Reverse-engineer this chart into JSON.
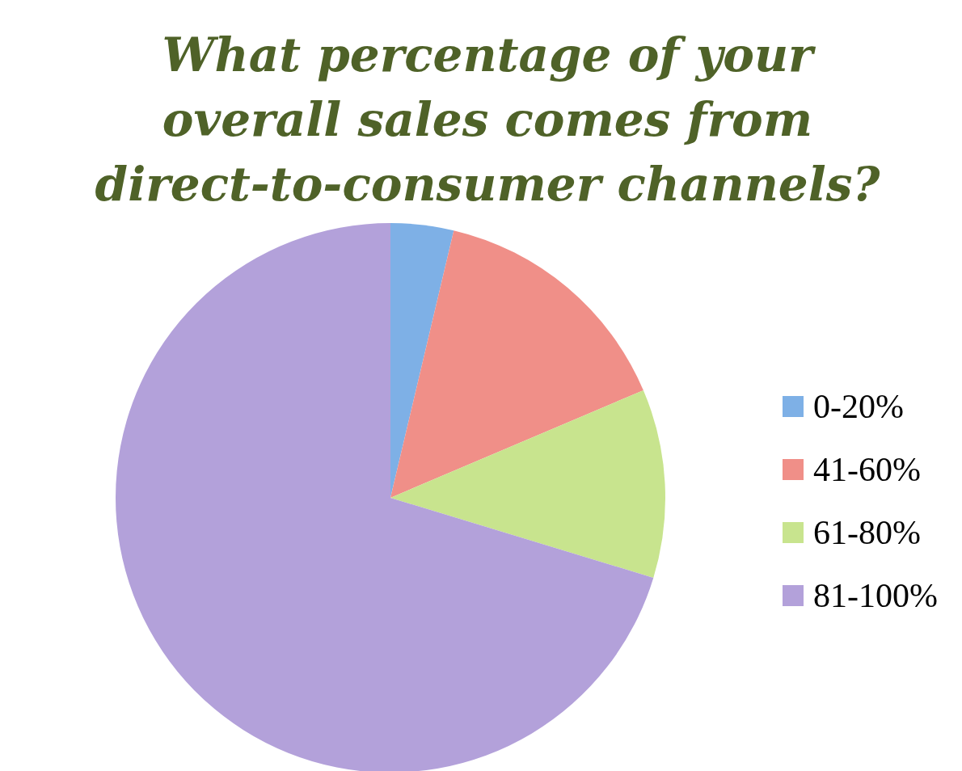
{
  "chart_data": {
    "type": "pie",
    "title": "What percentage of your overall sales comes from direct-to-consumer channels?",
    "categories": [
      "0-20%",
      "41-60%",
      "61-80%",
      "81-100%"
    ],
    "values": [
      3.7,
      14.9,
      11.1,
      70.3
    ],
    "colors": [
      "#7eb0e6",
      "#f08f88",
      "#c8e48e",
      "#b3a1da"
    ],
    "legend": "right"
  }
}
